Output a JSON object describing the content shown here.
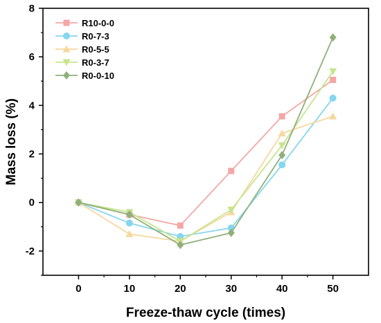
{
  "chart_data": {
    "type": "line",
    "xlabel": "Freeze-thaw cycle (times)",
    "ylabel": "Mass loss (%)",
    "x": [
      0,
      10,
      20,
      30,
      40,
      50
    ],
    "xlim": [
      -7,
      57
    ],
    "ylim": [
      -3,
      8
    ],
    "xticks": [
      0,
      10,
      20,
      30,
      40,
      50
    ],
    "yticks": [
      -2,
      0,
      2,
      4,
      6,
      8
    ],
    "grid": false,
    "legend_position": "top-left",
    "series": [
      {
        "name": "R10-0-0",
        "color": "#f4a6a6",
        "marker": "square",
        "values": [
          0,
          -0.5,
          -0.95,
          1.3,
          3.55,
          5.05
        ]
      },
      {
        "name": "R0-7-3",
        "color": "#86d6ef",
        "marker": "circle",
        "values": [
          0,
          -0.85,
          -1.4,
          -1.05,
          1.55,
          4.3
        ]
      },
      {
        "name": "R0-5-5",
        "color": "#f7d79e",
        "marker": "triangle-up",
        "values": [
          0,
          -1.3,
          -1.6,
          -0.4,
          2.85,
          3.55
        ]
      },
      {
        "name": "R0-3-7",
        "color": "#c6e58c",
        "marker": "triangle-down",
        "values": [
          0,
          -0.4,
          -1.6,
          -0.3,
          2.35,
          5.4
        ]
      },
      {
        "name": "R0-0-10",
        "color": "#8fb07a",
        "marker": "diamond",
        "values": [
          0,
          -0.5,
          -1.75,
          -1.25,
          1.95,
          6.8
        ]
      }
    ]
  }
}
